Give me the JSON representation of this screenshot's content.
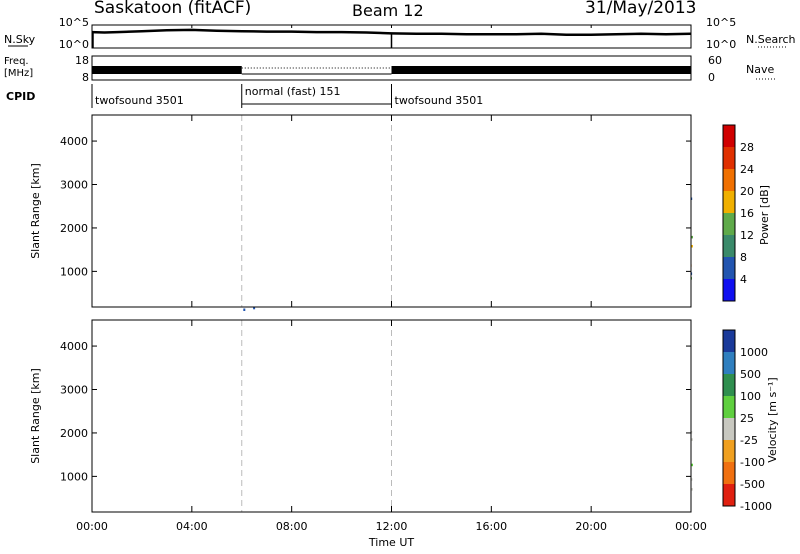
{
  "header": {
    "station": "Saskatoon (fitACF)",
    "beam": "Beam 12",
    "date": "31/May/2013"
  },
  "chart_data": [
    {
      "type": "line",
      "name": "noise-panel",
      "left_label": "N.Sky",
      "right_label": "N.Search",
      "left_ticks": [
        "10^5",
        "10^0"
      ],
      "right_ticks": [
        "10^5",
        "10^0"
      ],
      "x_range_hours": [
        0,
        24
      ],
      "x": [
        0,
        0.5,
        1,
        2,
        3,
        4,
        5,
        6,
        7,
        8,
        9,
        10,
        11,
        12,
        13,
        14,
        15,
        16,
        17,
        18,
        19,
        20,
        21,
        22,
        23,
        24
      ],
      "y_log": [
        3.6,
        3.5,
        3.6,
        3.8,
        4.0,
        4.1,
        3.9,
        3.8,
        3.7,
        3.7,
        3.6,
        3.6,
        3.5,
        3.3,
        3.2,
        3.2,
        3.1,
        3.1,
        3.1,
        3.2,
        3.0,
        3.0,
        3.1,
        3.2,
        3.1,
        3.2
      ]
    },
    {
      "type": "line",
      "name": "frequency-panel",
      "left_label_lines": [
        "Freq.",
        "[MHz]"
      ],
      "right_label": "Nave",
      "left_ticks": [
        "18",
        "8"
      ],
      "right_ticks": [
        "60",
        "0"
      ],
      "x_range_hours": [
        0,
        24
      ],
      "segments": [
        {
          "start": 0,
          "end": 6,
          "style": "dense"
        },
        {
          "start": 6,
          "end": 12,
          "style": "dotted"
        },
        {
          "start": 12,
          "end": 24,
          "style": "dense"
        }
      ]
    },
    {
      "type": "table",
      "name": "cpid-panel",
      "label": "CPID",
      "segments": [
        {
          "start": 0,
          "end": 6,
          "label": "twofsound 3501"
        },
        {
          "start": 6,
          "end": 12,
          "label": "normal (fast) 151"
        },
        {
          "start": 12,
          "end": 24,
          "label": "twofsound 3501"
        }
      ]
    },
    {
      "type": "heatmap",
      "name": "power-panel",
      "ylabel": "Slant Range [km]",
      "y_ticks": [
        1000,
        2000,
        3000,
        4000
      ],
      "ylim": [
        180,
        4600
      ],
      "colorbar_label": "Power [dB]",
      "colorbar_ticks": [
        4,
        8,
        12,
        16,
        20,
        24,
        28
      ],
      "colorbar_range": [
        0,
        32
      ],
      "colors": [
        "#1010f0",
        "#2255b0",
        "#3a8a6a",
        "#5faa4a",
        "#f0b000",
        "#f07000",
        "#e03000",
        "#d00000"
      ]
    },
    {
      "type": "heatmap",
      "name": "velocity-panel",
      "ylabel": "Slant Range [km]",
      "y_ticks": [
        1000,
        2000,
        3000,
        4000
      ],
      "ylim": [
        180,
        4600
      ],
      "colorbar_label": "Velocity [m s⁻¹]",
      "colorbar_ticks": [
        "1000",
        "500",
        "100",
        "25",
        "-25",
        "-100",
        "-500",
        "-1000"
      ],
      "colors": [
        "#1a3a9a",
        "#2f7fbf",
        "#2f8f4f",
        "#5fcf3f",
        "#c8c8c0",
        "#f0a020",
        "#f07010",
        "#e02010"
      ]
    }
  ],
  "x_axis": {
    "ticks": [
      "00:00",
      "04:00",
      "08:00",
      "12:00",
      "16:00",
      "20:00",
      "00:00"
    ],
    "label": "Time UT"
  }
}
